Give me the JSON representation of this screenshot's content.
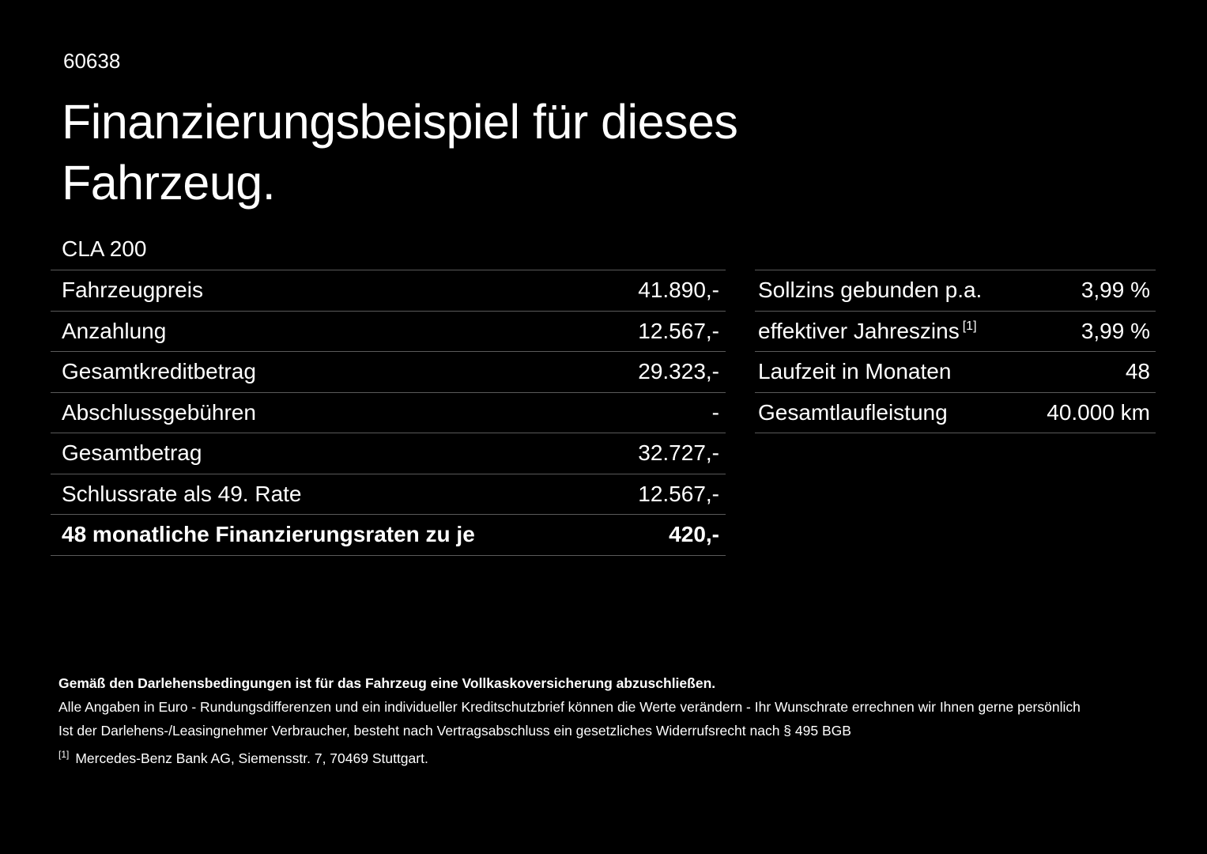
{
  "page": {
    "doc_number": "60638",
    "title_line1": "Finanzierungsbeispiel für dieses",
    "title_line2": "Fahrzeug.",
    "model": "CLA 200"
  },
  "colors": {
    "background": "#000000",
    "text": "#ffffff",
    "divider": "#5a5a5a"
  },
  "tables": {
    "left": {
      "rows": [
        {
          "label": "Fahrzeugpreis",
          "value": "41.890,-"
        },
        {
          "label": "Anzahlung",
          "value": "12.567,-"
        },
        {
          "label": "Gesamtkreditbetrag",
          "value": "29.323,-"
        },
        {
          "label": "Abschlussgebühren",
          "value": "-"
        },
        {
          "label": "Gesamtbetrag",
          "value": "32.727,-"
        },
        {
          "label": "Schlussrate als 49. Rate",
          "value": "12.567,-"
        },
        {
          "label": "48 monatliche Finanzierungsraten zu je",
          "value": "420,-"
        }
      ]
    },
    "right": {
      "rows": [
        {
          "label": "Sollzins gebunden p.a.",
          "sup": "",
          "value": "3,99 %"
        },
        {
          "label": "effektiver Jahreszins",
          "sup": "[1]",
          "value": "3,99 %"
        },
        {
          "label": "Laufzeit in Monaten",
          "sup": "",
          "value": "48"
        },
        {
          "label": "Gesamtlaufleistung",
          "sup": "",
          "value": "40.000 km"
        }
      ]
    }
  },
  "footer": {
    "bold_note": "Gemäß den Darlehensbedingungen ist für das Fahrzeug eine Vollkaskoversicherung abzuschließen.",
    "note2": "Alle Angaben in Euro - Rundungsdifferenzen und ein individueller Kreditschutzbrief können die Werte verändern - Ihr Wunschrate errechnen wir Ihnen gerne persönlich",
    "note3": "Ist der Darlehens-/Leasingnehmer Verbraucher, besteht nach Vertragsabschluss ein gesetzliches Widerrufsrecht nach § 495 BGB",
    "ref_sup": "[1]",
    "ref_text": "Mercedes-Benz Bank AG, Siemensstr. 7, 70469 Stuttgart."
  }
}
